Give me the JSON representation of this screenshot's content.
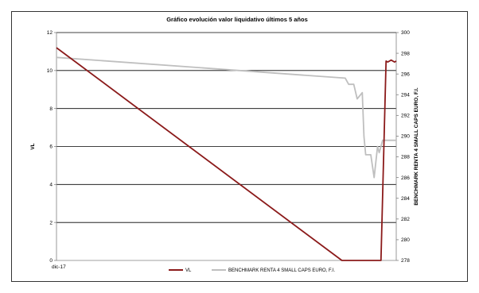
{
  "chart_data": {
    "type": "line",
    "title": "Gráfico evolución valor liquidativo últimos 5 años",
    "ylabel": "VL",
    "y2label": "BENCHMARK RENTA 4 SMALL CAPS EURO, F.I.",
    "xlabel": "",
    "x_ticks": [
      "dic-17"
    ],
    "ylim": [
      0,
      12
    ],
    "y_ticks": [
      "0",
      "2",
      "4",
      "6",
      "8",
      "10",
      "12"
    ],
    "y_tick_values": [
      0,
      2,
      4,
      6,
      8,
      10,
      12
    ],
    "y2lim": [
      278,
      300
    ],
    "y2_ticks": [
      "278",
      "280",
      "282",
      "284",
      "286",
      "288",
      "290",
      "292",
      "294",
      "296",
      "298",
      "300"
    ],
    "y2_tick_values": [
      278,
      280,
      282,
      284,
      286,
      288,
      290,
      292,
      294,
      296,
      298,
      300
    ],
    "grid": "horizontal",
    "legend_position": "bottom",
    "series": [
      {
        "name": "VL",
        "axis": "left",
        "color": "#8b1a1a",
        "points": [
          [
            0,
            11.2
          ],
          [
            0.84,
            0
          ],
          [
            0.955,
            0
          ],
          [
            0.97,
            10.5
          ],
          [
            0.975,
            10.45
          ],
          [
            0.985,
            10.55
          ],
          [
            0.995,
            10.45
          ],
          [
            1.01,
            10.5
          ],
          [
            1.0,
            10.5
          ]
        ]
      },
      {
        "name": "BENCHMARK RENTA  4 SMALL CAPS EURO, F.I.",
        "axis": "right",
        "color": "#bfbfbf",
        "points": [
          [
            0,
            297.6
          ],
          [
            0.85,
            295.6
          ],
          [
            0.86,
            295.0
          ],
          [
            0.875,
            295.0
          ],
          [
            0.885,
            293.6
          ],
          [
            0.9,
            294.2
          ],
          [
            0.905,
            290.0
          ],
          [
            0.91,
            288.2
          ],
          [
            0.925,
            288.2
          ],
          [
            0.935,
            286.0
          ],
          [
            0.945,
            289.0
          ],
          [
            0.95,
            288.4
          ],
          [
            0.96,
            289.6
          ],
          [
            1.0,
            289.6
          ]
        ]
      }
    ]
  }
}
